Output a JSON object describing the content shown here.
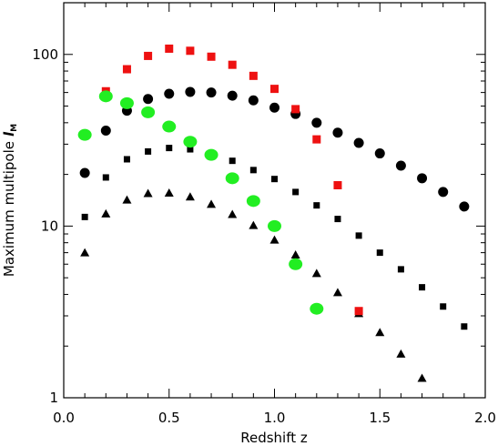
{
  "chart_data": {
    "type": "scatter",
    "xlabel": "Redshift z",
    "ylabel": "Maximum multipole",
    "ylabel_symbol": "l",
    "ylabel_subscript": "M",
    "xlim": [
      0.0,
      2.0
    ],
    "ylim": [
      1,
      200
    ],
    "yscale": "log",
    "grid": false,
    "x_ticks": [
      0.0,
      0.5,
      1.0,
      1.5,
      2.0
    ],
    "x_tick_labels": [
      "0.0",
      "0.5",
      "1.0",
      "1.5",
      "2.0"
    ],
    "y_ticks": [
      1,
      10,
      100
    ],
    "y_tick_labels": [
      "1",
      "10",
      "100"
    ],
    "colors": {
      "black": "#000000",
      "red": "#ee1111",
      "green": "#22ee22"
    },
    "series": [
      {
        "marker": "circle",
        "color": "#000000",
        "x": [
          0.1,
          0.2,
          0.3,
          0.4,
          0.5,
          0.6,
          0.7,
          0.8,
          0.9,
          1.0,
          1.1,
          1.2,
          1.3,
          1.4,
          1.5,
          1.6,
          1.7,
          1.8,
          1.9
        ],
        "y": [
          20.4,
          36.0,
          47.0,
          55.0,
          59.0,
          60.5,
          60.0,
          57.5,
          54.0,
          49.0,
          45.0,
          40.0,
          35.0,
          30.5,
          26.5,
          22.5,
          19.0,
          15.8,
          13.0
        ]
      },
      {
        "marker": "square",
        "color": "#000000",
        "x": [
          0.1,
          0.2,
          0.3,
          0.4,
          0.5,
          0.6,
          0.7,
          0.8,
          0.9,
          1.0,
          1.1,
          1.2,
          1.3,
          1.4,
          1.5,
          1.6,
          1.7,
          1.8,
          1.9
        ],
        "y": [
          11.3,
          19.2,
          24.5,
          27.2,
          28.5,
          28.0,
          26.5,
          24.0,
          21.2,
          18.8,
          15.8,
          13.2,
          11.0,
          8.8,
          7.0,
          5.6,
          4.4,
          3.4,
          2.6
        ]
      },
      {
        "marker": "triangle",
        "color": "#000000",
        "x": [
          0.1,
          0.2,
          0.3,
          0.4,
          0.5,
          0.6,
          0.7,
          0.8,
          0.9,
          1.0,
          1.1,
          1.2,
          1.3,
          1.4,
          1.5,
          1.6,
          1.7
        ],
        "y": [
          7.0,
          11.8,
          14.2,
          15.5,
          15.6,
          14.8,
          13.4,
          11.7,
          10.1,
          8.3,
          6.8,
          5.3,
          4.1,
          3.1,
          2.4,
          1.8,
          1.3
        ]
      },
      {
        "marker": "square",
        "color": "#ee1111",
        "x": [
          0.1,
          0.2,
          0.3,
          0.4,
          0.5,
          0.6,
          0.7,
          0.8,
          0.9,
          1.0,
          1.1,
          1.2,
          1.3,
          1.4
        ],
        "y": [
          34.0,
          61.0,
          82.0,
          98.0,
          108.0,
          105.0,
          97.0,
          87.0,
          75.0,
          63.0,
          48.0,
          32.0,
          17.3,
          3.2
        ]
      },
      {
        "marker": "ellipse",
        "color": "#22ee22",
        "x": [
          0.1,
          0.2,
          0.3,
          0.4,
          0.5,
          0.6,
          0.7,
          0.8,
          0.9,
          1.0,
          1.1,
          1.2
        ],
        "y": [
          34.0,
          57.0,
          52.0,
          46.0,
          38.0,
          31.0,
          26.0,
          19.0,
          14.0,
          10.0,
          6.0,
          3.3
        ]
      }
    ]
  }
}
